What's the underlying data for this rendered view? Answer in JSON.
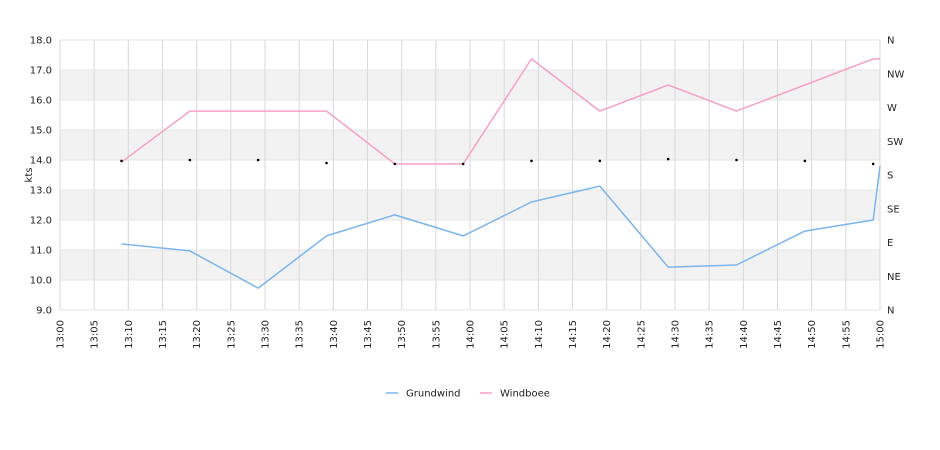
{
  "chart_data": {
    "type": "line",
    "ylabel": "kts",
    "ylim": [
      9,
      18
    ],
    "yticks": [
      "18.0",
      "17.0",
      "16.0",
      "15.0",
      "14.0",
      "13.0",
      "12.0",
      "11.0",
      "10.0",
      "9.0"
    ],
    "xlim": [
      "13:00",
      "15:00"
    ],
    "xticks": [
      "13:00",
      "13:05",
      "13:10",
      "13:15",
      "13:20",
      "13:25",
      "13:30",
      "13:35",
      "13:40",
      "13:45",
      "13:50",
      "13:55",
      "14:00",
      "14:05",
      "14:10",
      "14:15",
      "14:20",
      "14:25",
      "14:30",
      "14:35",
      "14:40",
      "14:45",
      "14:50",
      "14:55",
      "15:00"
    ],
    "y2ticks": [
      "N",
      "NW",
      "W",
      "SW",
      "S",
      "SE",
      "E",
      "NE",
      "N"
    ],
    "grid": true,
    "alternating_bands": true,
    "legend_position": "bottom",
    "series": [
      {
        "name": "Grundwind",
        "color": "#7cb5ec",
        "x": [
          "13:09",
          "13:19",
          "13:29",
          "13:39",
          "13:49",
          "13:59",
          "14:09",
          "14:19",
          "14:29",
          "14:39",
          "14:49",
          "14:59",
          "15:00"
        ],
        "values": [
          11.2,
          10.97,
          9.73,
          11.47,
          12.17,
          11.47,
          12.6,
          13.13,
          10.43,
          10.5,
          11.63,
          12.0,
          13.8
        ]
      },
      {
        "name": "Windboee",
        "color": "#f7a0c8",
        "x": [
          "13:09",
          "13:19",
          "13:29",
          "13:39",
          "13:49",
          "13:59",
          "14:09",
          "14:19",
          "14:29",
          "14:39",
          "14:49",
          "14:59",
          "15:00"
        ],
        "values": [
          13.93,
          15.63,
          15.63,
          15.63,
          13.87,
          13.87,
          17.37,
          15.63,
          16.5,
          15.63,
          16.5,
          17.37,
          17.37
        ]
      }
    ],
    "direction_markers": {
      "x": [
        "13:09",
        "13:19",
        "13:29",
        "13:39",
        "13:49",
        "13:59",
        "14:09",
        "14:19",
        "14:29",
        "14:39",
        "14:49",
        "14:59"
      ],
      "values": [
        13.97,
        14.0,
        14.0,
        13.9,
        13.87,
        13.87,
        13.97,
        13.97,
        14.03,
        14.0,
        13.97,
        13.87
      ]
    }
  }
}
